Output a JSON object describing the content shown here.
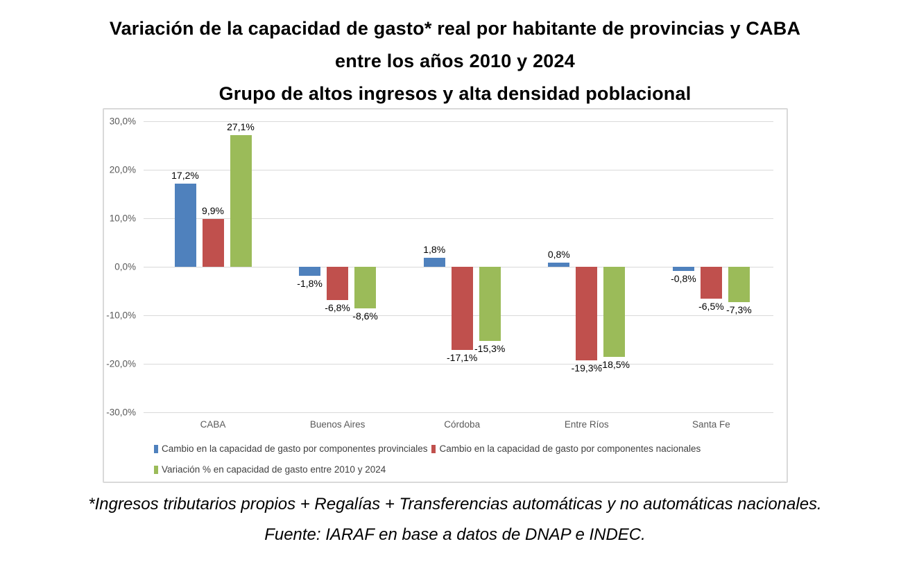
{
  "title": {
    "line1": "Variación de la capacidad de gasto* real por habitante de provincias y CABA",
    "line2": "entre los años 2010 y 2024",
    "line3": "Grupo de altos ingresos y alta densidad poblacional"
  },
  "footnote": "*Ingresos tributarios propios + Regalías + Transferencias  automáticas y no automáticas  nacionales.",
  "source": "Fuente:  IARAF en base a datos de  DNAP e INDEC.",
  "chart_data": {
    "type": "bar",
    "title": "Variación de la capacidad de gasto* real por habitante de provincias y CABA entre los años 2010 y 2024",
    "subtitle": "Grupo de altos ingresos y alta densidad poblacional",
    "categories": [
      "CABA",
      "Buenos Aires",
      "Córdoba",
      "Entre Ríos",
      "Santa Fe"
    ],
    "series": [
      {
        "name": "Cambio en la capacidad de gasto por componentes provinciales",
        "color": "#4F81BD",
        "values": [
          17.2,
          -1.8,
          1.8,
          0.8,
          -0.8
        ],
        "labels": [
          "17,2%",
          "-1,8%",
          "1,8%",
          "0,8%",
          "-0,8%"
        ]
      },
      {
        "name": "Cambio en la capacidad de gasto por componentes nacionales",
        "color": "#C0504D",
        "values": [
          9.9,
          -6.8,
          -17.1,
          -19.3,
          -6.5
        ],
        "labels": [
          "9,9%",
          "-6,8%",
          "-17,1%",
          "-19,3%",
          "-6,5%"
        ]
      },
      {
        "name": "Variación % en capacidad de gasto entre 2010 y 2024",
        "color": "#9BBB59",
        "values": [
          27.1,
          -8.6,
          -15.3,
          -18.5,
          -7.3
        ],
        "labels": [
          "27,1%",
          "-8,6%",
          "-15,3%",
          "-18,5%",
          "-7,3%"
        ]
      }
    ],
    "y_axis": {
      "min": -30,
      "max": 30,
      "step": 10,
      "ticks": [
        "30,0%",
        "20,0%",
        "10,0%",
        "0,0%",
        "-10,0%",
        "-20,0%",
        "-30,0%"
      ]
    },
    "grid": true,
    "legend_position": "bottom",
    "legend_rows": [
      [
        0,
        1
      ],
      [
        2
      ]
    ],
    "colors": {
      "gridline": "#D9D9D9",
      "chart_border": "#D9D9D9",
      "axis_text": "#595959",
      "data_label_text": "#000000"
    }
  }
}
